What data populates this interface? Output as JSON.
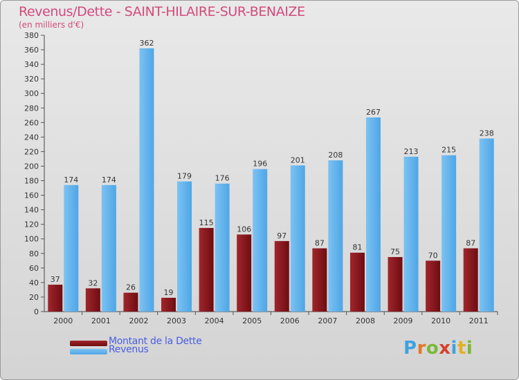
{
  "title": "Revenus/Dette - SAINT-HILAIRE-SUR-BENAIZE",
  "subtitle": "(en milliers d'€)",
  "legend": {
    "debt_label": "Montant de la Dette",
    "revenue_label": "Revenus"
  },
  "logo": {
    "text": "Proxiti",
    "letter_colors": [
      "#3fa2e0",
      "#e07a2a",
      "#7cb838",
      "#d8402e",
      "#3fa2e0",
      "#e2b020",
      "#7cb838"
    ]
  },
  "colors": {
    "debt": "#6e0d12",
    "debt_light": "#a0262c",
    "revenue": "#4ea6e6",
    "revenue_light": "#7cc2f2",
    "axis_text": "#333333",
    "title": "#d24a7a"
  },
  "chart_data": {
    "type": "bar",
    "categories": [
      "2000",
      "2001",
      "2002",
      "2003",
      "2004",
      "2005",
      "2006",
      "2007",
      "2008",
      "2009",
      "2010",
      "2011"
    ],
    "series": [
      {
        "name": "Montant de la Dette",
        "values": [
          37,
          32,
          26,
          19,
          115,
          106,
          97,
          87,
          81,
          75,
          70,
          87
        ]
      },
      {
        "name": "Revenus",
        "values": [
          174,
          174,
          362,
          179,
          176,
          196,
          201,
          208,
          267,
          213,
          215,
          238
        ]
      }
    ],
    "ylim": [
      0,
      380
    ],
    "yticks": [
      0,
      20,
      40,
      60,
      80,
      100,
      120,
      140,
      160,
      180,
      200,
      220,
      240,
      260,
      280,
      300,
      320,
      340,
      360,
      380
    ],
    "data_labels": true,
    "grid": false,
    "legend": "bottom-left"
  }
}
